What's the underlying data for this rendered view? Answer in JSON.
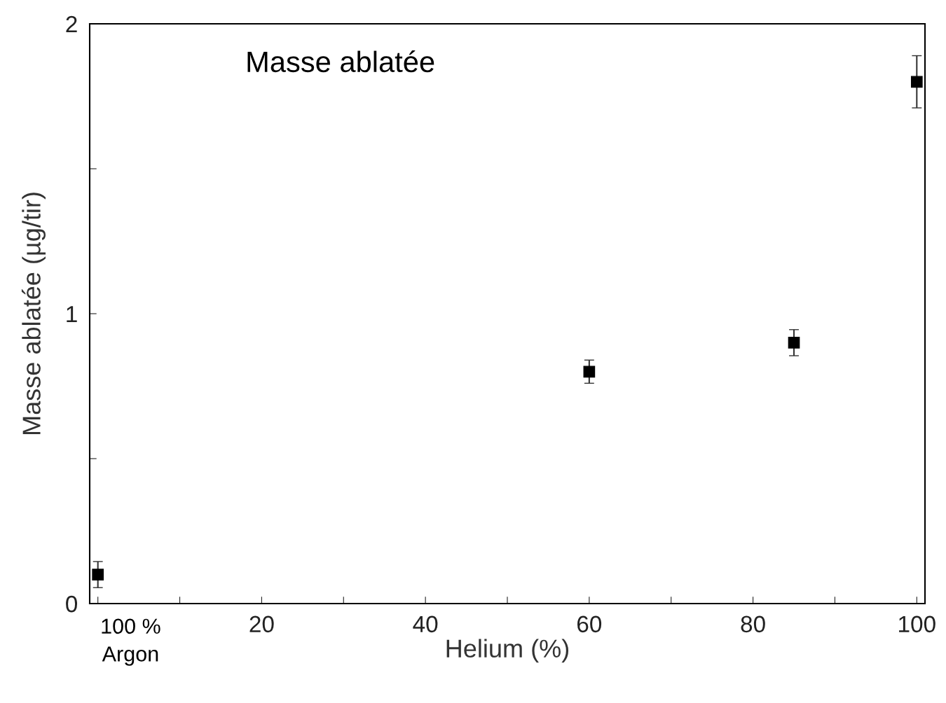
{
  "chart_data": {
    "type": "scatter",
    "title": "Masse ablatée",
    "xlabel": "Helium (%)",
    "ylabel": "Masse ablatée (µg/tir)",
    "annotations": [
      "100 %\nArgon"
    ],
    "x": [
      0,
      60,
      85,
      100
    ],
    "series": [
      {
        "color": "#000000",
        "values": [
          0.1,
          0.8,
          0.9,
          1.8
        ],
        "errors": [
          0.045,
          0.04,
          0.045,
          0.09
        ]
      }
    ],
    "marker": "square",
    "grid": false,
    "legend": false,
    "xlim": [
      -1,
      101
    ],
    "xticks": [
      {
        "value": 0,
        "label": null
      },
      {
        "value": 10,
        "label": null
      },
      20,
      {
        "value": 30,
        "label": null
      },
      40,
      {
        "value": 50,
        "label": null
      },
      60,
      {
        "value": 70,
        "label": null
      },
      80,
      {
        "value": 90,
        "label": null
      },
      100
    ],
    "ylim": [
      0,
      2
    ],
    "yticks": [
      0,
      {
        "value": 0.5,
        "label": null
      },
      1,
      {
        "value": 1.5,
        "label": null
      },
      2
    ]
  }
}
